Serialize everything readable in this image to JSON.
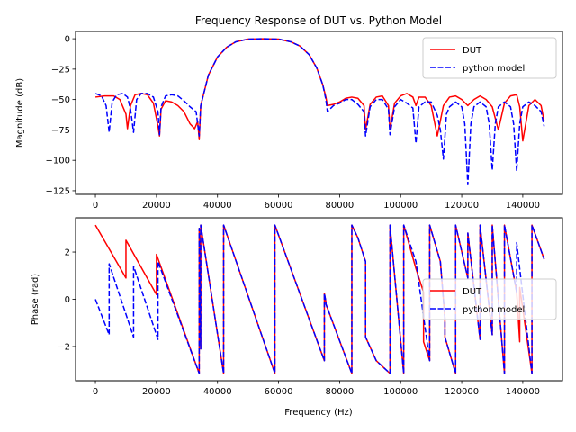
{
  "chart_data": [
    {
      "type": "line",
      "title": "Frequency Response of DUT vs. Python Model",
      "xlabel": "",
      "ylabel": "Magnitude (dB)",
      "xlim": [
        -6500,
        153000
      ],
      "ylim": [
        -128,
        6
      ],
      "xticks": [
        0,
        20000,
        40000,
        60000,
        80000,
        100000,
        120000,
        140000
      ],
      "yticks": [
        0,
        -25,
        -50,
        -75,
        -100,
        -125
      ],
      "legend_position": "upper right",
      "legend": [
        "DUT",
        "python model"
      ],
      "series": [
        {
          "name": "DUT",
          "color": "#ff0000",
          "style": "solid",
          "x": [
            0,
            3000,
            6000,
            8000,
            10000,
            10500,
            11500,
            13000,
            15000,
            17000,
            19000,
            20500,
            21000,
            21500,
            23000,
            25000,
            27000,
            29000,
            31000,
            32500,
            33500,
            34000,
            34500,
            37000,
            40000,
            43000,
            46000,
            50000,
            55000,
            60000,
            64000,
            67000,
            70000,
            72500,
            74500,
            75500,
            76000,
            78000,
            80000,
            82000,
            84000,
            86000,
            88000,
            88500,
            90000,
            92000,
            94000,
            96000,
            96500,
            98000,
            100000,
            102000,
            104000,
            105000,
            106000,
            108000,
            110000,
            112000,
            114000,
            116000,
            118000,
            120000,
            122000,
            124000,
            126000,
            128000,
            130000,
            132000,
            134000,
            136000,
            138000,
            139000,
            140000,
            142000,
            144000,
            146000,
            147000
          ],
          "y": [
            -48,
            -47,
            -47,
            -50,
            -62,
            -74,
            -55,
            -46,
            -45,
            -46,
            -53,
            -72,
            -80,
            -58,
            -51,
            -52,
            -55,
            -60,
            -70,
            -74,
            -68,
            -83,
            -55,
            -30,
            -15,
            -7,
            -2.5,
            -0.3,
            0,
            -0.3,
            -2.5,
            -6,
            -13,
            -24,
            -38,
            -48,
            -55,
            -54,
            -52,
            -49,
            -48,
            -49,
            -55,
            -75,
            -54,
            -48,
            -47,
            -55,
            -75,
            -53,
            -47,
            -45,
            -48,
            -55,
            -48,
            -48,
            -55,
            -80,
            -55,
            -48,
            -47,
            -50,
            -55,
            -50,
            -47,
            -50,
            -56,
            -75,
            -53,
            -47,
            -46,
            -56,
            -84,
            -55,
            -50,
            -55,
            -68
          ]
        },
        {
          "name": "python model",
          "color": "#0000ff",
          "style": "dashed",
          "x": [
            0,
            2000,
            3500,
            4500,
            5500,
            7000,
            9000,
            10500,
            11500,
            12500,
            13500,
            15000,
            17000,
            19000,
            20500,
            21000,
            21500,
            23000,
            25000,
            27000,
            29000,
            31000,
            33000,
            33500,
            34000,
            34500,
            37000,
            40000,
            43000,
            46000,
            50000,
            55000,
            60000,
            64000,
            67000,
            70000,
            72500,
            74500,
            75500,
            76000,
            78000,
            80000,
            82000,
            84000,
            86000,
            88000,
            88500,
            90000,
            92000,
            94000,
            96000,
            96500,
            98000,
            100000,
            102000,
            104000,
            105000,
            106000,
            108000,
            110000,
            112000,
            113000,
            114000,
            115000,
            116000,
            118000,
            120000,
            121000,
            122000,
            123000,
            124000,
            126000,
            128000,
            129000,
            130000,
            131000,
            132000,
            134000,
            136000,
            137000,
            138000,
            139000,
            140000,
            142000,
            144000,
            146000,
            147000
          ],
          "y": [
            -45,
            -47,
            -55,
            -77,
            -52,
            -46,
            -45,
            -48,
            -58,
            -77,
            -50,
            -45,
            -45,
            -48,
            -60,
            -79,
            -56,
            -47,
            -46,
            -47,
            -51,
            -56,
            -60,
            -70,
            -80,
            -55,
            -30,
            -15,
            -7,
            -2.5,
            -0.3,
            0,
            -0.3,
            -2.5,
            -6,
            -13,
            -24,
            -38,
            -50,
            -60,
            -55,
            -53,
            -50,
            -50,
            -54,
            -60,
            -80,
            -56,
            -50,
            -50,
            -58,
            -79,
            -56,
            -50,
            -53,
            -57,
            -86,
            -56,
            -52,
            -52,
            -63,
            -75,
            -99,
            -62,
            -56,
            -52,
            -56,
            -70,
            -120,
            -70,
            -56,
            -52,
            -56,
            -70,
            -108,
            -70,
            -56,
            -52,
            -56,
            -70,
            -109,
            -70,
            -56,
            -52,
            -55,
            -60,
            -72
          ]
        }
      ]
    },
    {
      "type": "line",
      "title": "",
      "xlabel": "Frequency (Hz)",
      "ylabel": "Phase (rad)",
      "xlim": [
        -6500,
        153000
      ],
      "ylim": [
        -3.45,
        3.45
      ],
      "xticks": [
        0,
        20000,
        40000,
        60000,
        80000,
        100000,
        120000,
        140000
      ],
      "yticks": [
        2,
        0,
        -2
      ],
      "legend_position": "center right",
      "legend": [
        "DUT",
        "python model"
      ],
      "series": [
        {
          "name": "DUT",
          "color": "#ff0000",
          "style": "solid",
          "x": [
            0,
            10000,
            10001,
            20000,
            20001,
            34000,
            34001,
            34500,
            34501,
            42000,
            42001,
            58800,
            58801,
            75000,
            75001,
            75500,
            75501,
            84000,
            84001,
            86000,
            88500,
            88501,
            92000,
            96500,
            96501,
            101000,
            101001,
            105000,
            107500,
            107501,
            109500,
            109501,
            113000,
            114500,
            114501,
            118000,
            118001,
            122000,
            122001,
            126000,
            126001,
            130000,
            130001,
            134000,
            134001,
            138000,
            139000,
            139001,
            143000,
            143001,
            147000
          ],
          "y": [
            3.14,
            0.9,
            2.5,
            0.2,
            1.9,
            -3.14,
            3.0,
            -2.1,
            3.14,
            -3.14,
            3.14,
            -3.14,
            3.14,
            -2.6,
            0.25,
            -0.1,
            -0.2,
            -3.14,
            3.14,
            2.6,
            1.6,
            -1.6,
            -2.6,
            -3.14,
            3.14,
            -3.14,
            3.14,
            1.3,
            0.3,
            -1.8,
            -2.6,
            3.14,
            1.6,
            -0.8,
            -1.6,
            -3.14,
            3.14,
            0.9,
            2.8,
            -1.7,
            3.14,
            -1.5,
            3.14,
            -3.14,
            3.14,
            0.3,
            -1.8,
            0.5,
            -3.14,
            3.14,
            1.7
          ]
        },
        {
          "name": "python model",
          "color": "#0000ff",
          "style": "dashed",
          "x": [
            0,
            4500,
            4501,
            12500,
            12501,
            20500,
            20501,
            34000,
            34001,
            34500,
            34501,
            42000,
            42001,
            58800,
            58801,
            75000,
            75001,
            75500,
            75501,
            84000,
            84001,
            86000,
            88500,
            88501,
            92000,
            96500,
            96501,
            101000,
            101001,
            105000,
            109500,
            109501,
            113000,
            114500,
            114501,
            118000,
            118001,
            122000,
            122001,
            126000,
            126001,
            130000,
            130001,
            134000,
            134001,
            138000,
            138001,
            143000,
            143001,
            147000
          ],
          "y": [
            0,
            -1.5,
            1.5,
            -1.6,
            1.4,
            -1.7,
            1.6,
            -3.14,
            3.0,
            -2.1,
            3.14,
            -3.14,
            3.14,
            -3.14,
            3.14,
            -2.6,
            0.25,
            -0.1,
            -0.2,
            -3.14,
            3.14,
            2.6,
            1.6,
            -1.6,
            -2.6,
            -3.14,
            3.14,
            -3.14,
            3.14,
            1.6,
            -2.6,
            3.14,
            1.6,
            -0.8,
            -1.6,
            -3.14,
            3.14,
            0.9,
            2.8,
            -1.7,
            3.14,
            -1.5,
            3.14,
            -3.14,
            3.14,
            0.3,
            2.4,
            -3.14,
            3.14,
            1.7
          ]
        }
      ]
    }
  ]
}
